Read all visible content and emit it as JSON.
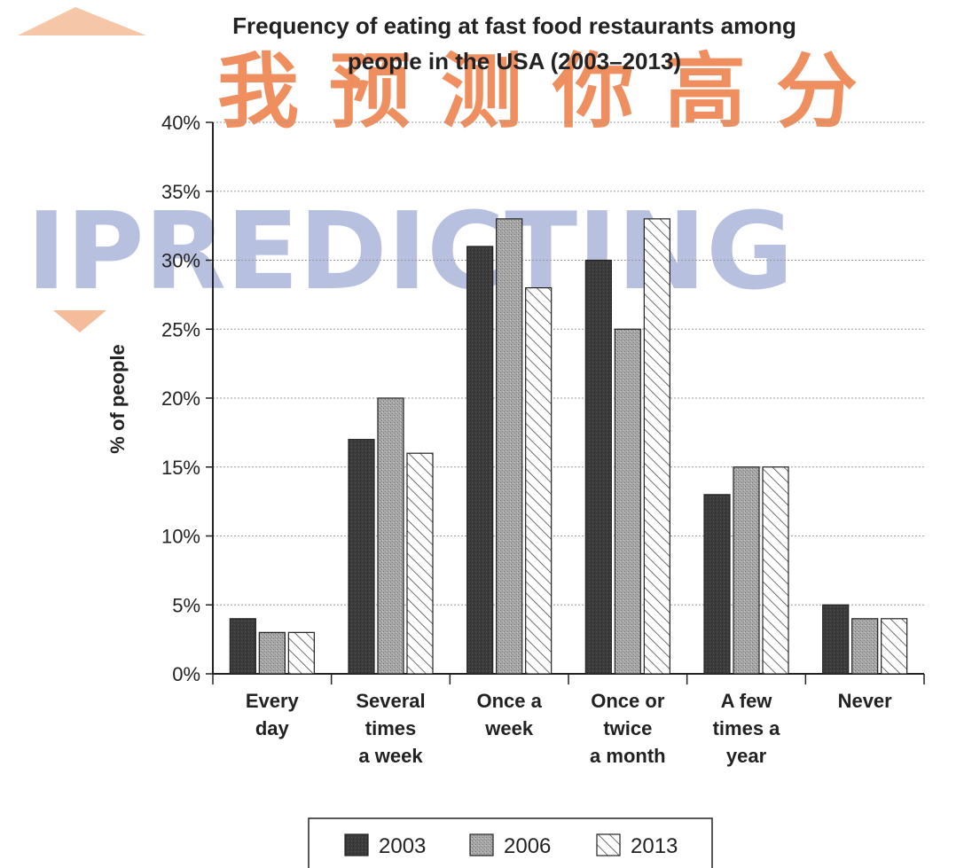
{
  "chart_data": {
    "type": "bar",
    "title": [
      "Frequency of eating at fast food restaurants among",
      "people in the USA (2003–2013)"
    ],
    "ylabel": "% of people",
    "xlabel": "",
    "ylim": [
      0,
      40
    ],
    "yticks": [
      0,
      5,
      10,
      15,
      20,
      25,
      30,
      35,
      40
    ],
    "ytick_suffix": "%",
    "grid": "horizontal dotted",
    "legend_position": "bottom",
    "categories": [
      [
        "Every",
        "day"
      ],
      [
        "Several",
        "times",
        "a week"
      ],
      [
        "Once a",
        "week"
      ],
      [
        "Once or",
        "twice",
        "a month"
      ],
      [
        "A few",
        "times a",
        "year"
      ],
      [
        "Never"
      ]
    ],
    "series": [
      {
        "name": "2003",
        "color": "#3a3a3a",
        "pattern": "solid-dark",
        "values": [
          4,
          17,
          31,
          30,
          13,
          5
        ]
      },
      {
        "name": "2006",
        "color": "#9a9a9a",
        "pattern": "stipple-grey",
        "values": [
          3,
          20,
          33,
          25,
          15,
          4
        ]
      },
      {
        "name": "2013",
        "color": "#ffffff",
        "pattern": "diagonal-hatch",
        "values": [
          3,
          16,
          28,
          33,
          15,
          4
        ]
      }
    ]
  },
  "watermark": {
    "latin": "IPREDICTING",
    "cjk": "我预测你高分",
    "colors": {
      "latin": "#7d8fc6",
      "cjk": "#ea6a2c"
    }
  }
}
